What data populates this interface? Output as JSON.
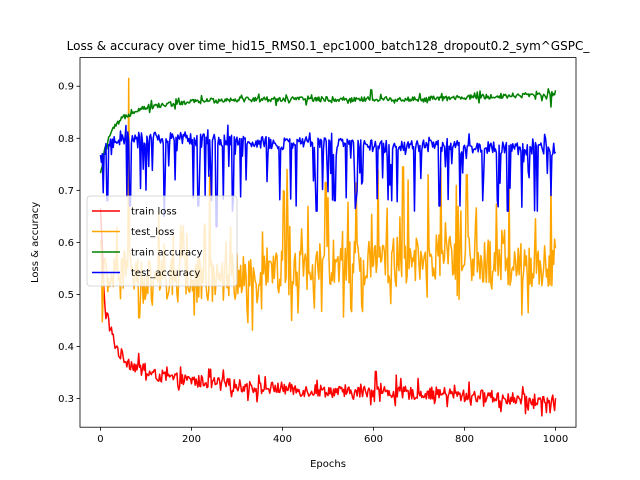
{
  "chart_data": {
    "type": "line",
    "title": "Loss & accuracy over time_hid15_RMS0.1_epc1000_batch128_dropout0.2_sym^GSPC_",
    "xlabel": "Epochs",
    "ylabel": "Loss & accuracy",
    "xlim": [
      -45,
      1045
    ],
    "ylim": [
      0.245,
      0.955
    ],
    "xticks": [
      "0",
      "200",
      "400",
      "600",
      "800",
      "1000"
    ],
    "yticks": [
      "0.3",
      "0.4",
      "0.5",
      "0.6",
      "0.7",
      "0.8",
      "0.9"
    ],
    "grid": false,
    "legend_position": "center-left",
    "series": [
      {
        "name": "train loss",
        "color": "#ff0000",
        "x": [
          0,
          10,
          20,
          30,
          40,
          50,
          60,
          80,
          100,
          120,
          150,
          180,
          200,
          250,
          300,
          350,
          400,
          450,
          500,
          550,
          600,
          650,
          700,
          750,
          800,
          850,
          900,
          950,
          1000
        ],
        "values": [
          0.66,
          0.47,
          0.44,
          0.41,
          0.39,
          0.38,
          0.37,
          0.36,
          0.35,
          0.345,
          0.34,
          0.335,
          0.335,
          0.33,
          0.325,
          0.32,
          0.32,
          0.315,
          0.315,
          0.31,
          0.315,
          0.31,
          0.31,
          0.31,
          0.305,
          0.305,
          0.3,
          0.295,
          0.295
        ],
        "noise": 0.012,
        "spikes": [
          [
            605,
            0.352
          ],
          [
            650,
            0.345
          ],
          [
            880,
            0.275
          ],
          [
            940,
            0.278
          ]
        ]
      },
      {
        "name": "test_loss",
        "color": "#ffa500",
        "x": [
          0,
          20,
          40,
          60,
          80,
          100,
          150,
          200,
          250,
          300,
          350,
          400,
          450,
          500,
          550,
          600,
          650,
          700,
          750,
          800,
          850,
          900,
          950,
          1000
        ],
        "values": [
          0.55,
          0.52,
          0.53,
          0.55,
          0.53,
          0.52,
          0.525,
          0.53,
          0.53,
          0.535,
          0.54,
          0.54,
          0.55,
          0.555,
          0.56,
          0.56,
          0.565,
          0.57,
          0.57,
          0.57,
          0.56,
          0.56,
          0.555,
          0.56
        ],
        "noise": 0.045,
        "spikes": [
          [
            62,
            0.915
          ],
          [
            240,
            0.73
          ],
          [
            410,
            0.74
          ],
          [
            495,
            0.715
          ],
          [
            610,
            0.74
          ],
          [
            665,
            0.745
          ],
          [
            720,
            0.73
          ],
          [
            805,
            0.73
          ],
          [
            990,
            0.72
          ],
          [
            85,
            0.455
          ],
          [
            420,
            0.45
          ]
        ]
      },
      {
        "name": "train accuracy",
        "color": "#008000",
        "x": [
          0,
          10,
          20,
          30,
          40,
          50,
          60,
          80,
          100,
          150,
          200,
          300,
          400,
          500,
          600,
          700,
          800,
          900,
          1000
        ],
        "values": [
          0.73,
          0.78,
          0.805,
          0.82,
          0.83,
          0.84,
          0.845,
          0.855,
          0.86,
          0.865,
          0.87,
          0.875,
          0.875,
          0.875,
          0.875,
          0.875,
          0.878,
          0.882,
          0.885
        ],
        "noise": 0.005,
        "spikes": [
          [
            990,
            0.9
          ],
          [
            595,
            0.893
          ],
          [
            990,
            0.86
          ]
        ]
      },
      {
        "name": "test_accuracy",
        "color": "#0000ff",
        "x": [
          0,
          20,
          50,
          100,
          200,
          300,
          400,
          500,
          600,
          700,
          800,
          900,
          1000
        ],
        "values": [
          0.76,
          0.79,
          0.8,
          0.8,
          0.8,
          0.795,
          0.79,
          0.79,
          0.785,
          0.785,
          0.785,
          0.78,
          0.78
        ],
        "noise": 0.012,
        "spikes": [
          [
            280,
            0.825
          ],
          [
            255,
            0.63
          ],
          [
            15,
            0.68
          ],
          [
            65,
            0.67
          ],
          [
            140,
            0.65
          ],
          [
            215,
            0.67
          ],
          [
            290,
            0.66
          ],
          [
            320,
            0.72
          ],
          [
            430,
            0.67
          ],
          [
            475,
            0.66
          ],
          [
            515,
            0.68
          ],
          [
            560,
            0.665
          ],
          [
            640,
            0.68
          ],
          [
            690,
            0.66
          ],
          [
            745,
            0.67
          ],
          [
            790,
            0.67
          ],
          [
            840,
            0.68
          ],
          [
            895,
            0.66
          ],
          [
            960,
            0.66
          ],
          [
            990,
            0.69
          ]
        ]
      }
    ]
  }
}
